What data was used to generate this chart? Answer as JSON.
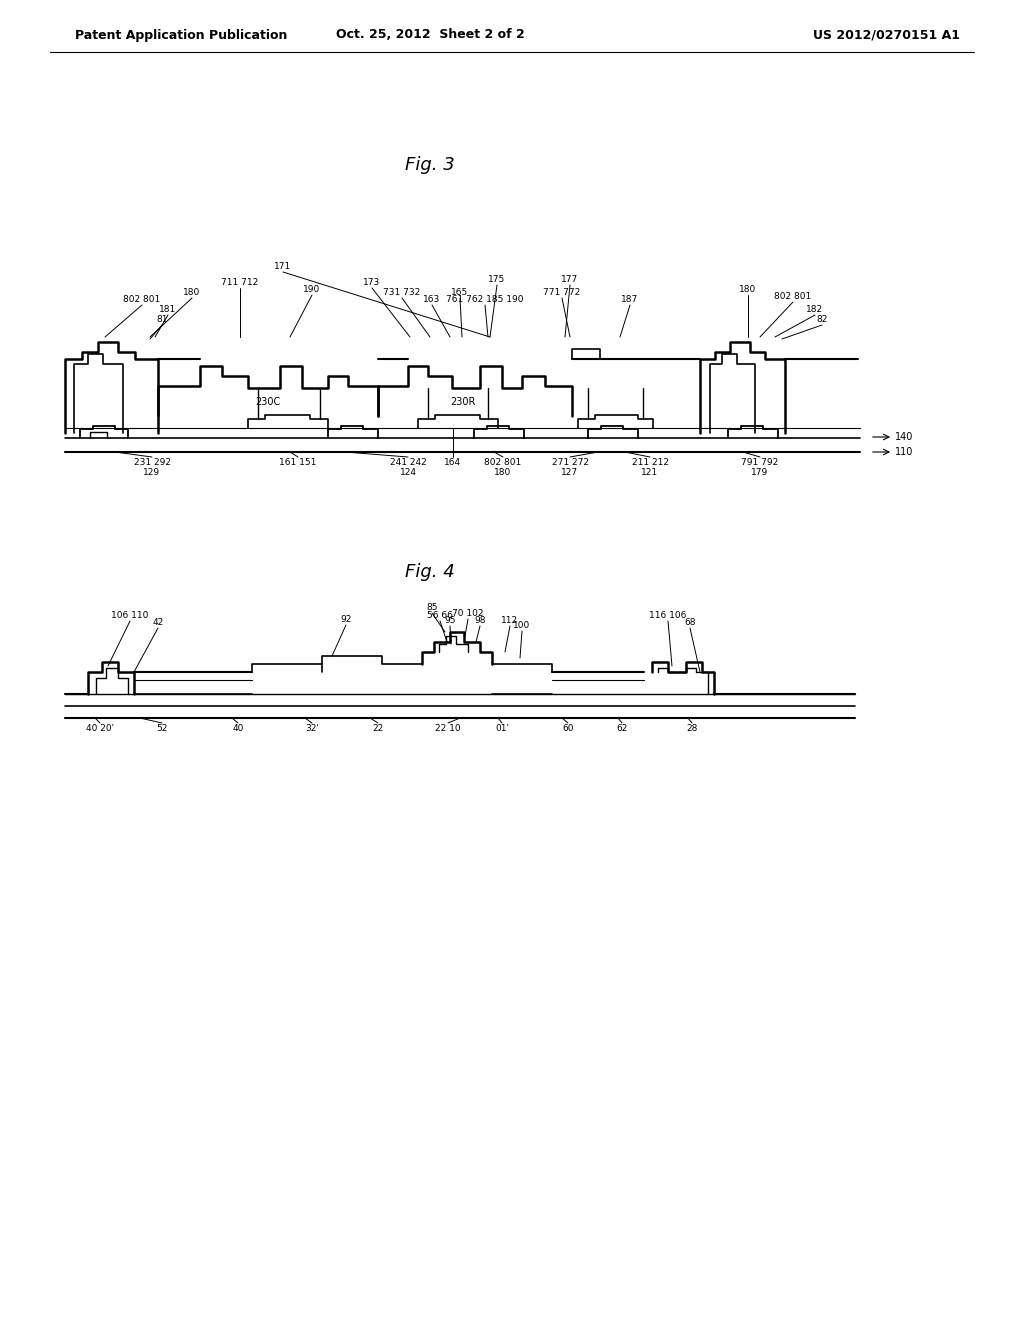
{
  "background_color": "#ffffff",
  "header_left": "Patent Application Publication",
  "header_center": "Oct. 25, 2012  Sheet 2 of 2",
  "header_right": "US 2012/0270151 A1",
  "fig3_label": "Fig. 3",
  "fig4_label": "Fig. 4",
  "line_color": "#000000",
  "text_color": "#000000"
}
